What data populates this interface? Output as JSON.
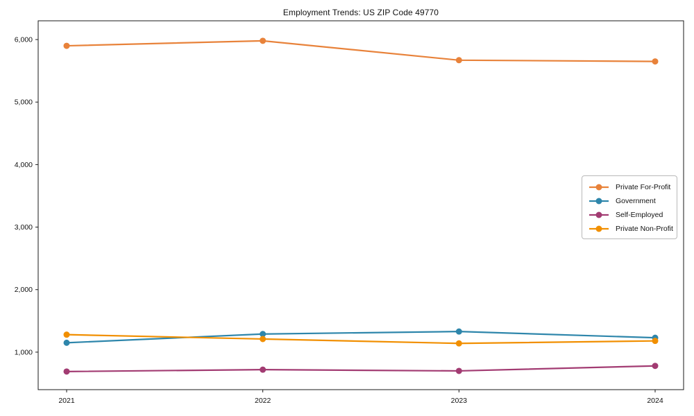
{
  "chart_data": {
    "type": "line",
    "title": "Employment Trends: US ZIP Code 49770",
    "x": [
      "2021",
      "2022",
      "2023",
      "2024"
    ],
    "series": [
      {
        "name": "Private For-Profit",
        "color": "#E8823A",
        "values": [
          5900,
          5980,
          5670,
          5650
        ]
      },
      {
        "name": "Government",
        "color": "#2E86AB",
        "values": [
          1150,
          1290,
          1330,
          1230
        ]
      },
      {
        "name": "Self-Employed",
        "color": "#A23B72",
        "values": [
          690,
          720,
          700,
          780
        ]
      },
      {
        "name": "Private Non-Profit",
        "color": "#F18F01",
        "values": [
          1280,
          1210,
          1140,
          1180
        ]
      }
    ],
    "xlabel": "",
    "ylabel": "",
    "ylim": [
      400,
      6300
    ],
    "yticks": [
      1000,
      2000,
      3000,
      4000,
      5000,
      6000
    ],
    "grid": false,
    "legend_position": "right-center",
    "marker": "circle",
    "frame_color": "#1a1a1a"
  }
}
